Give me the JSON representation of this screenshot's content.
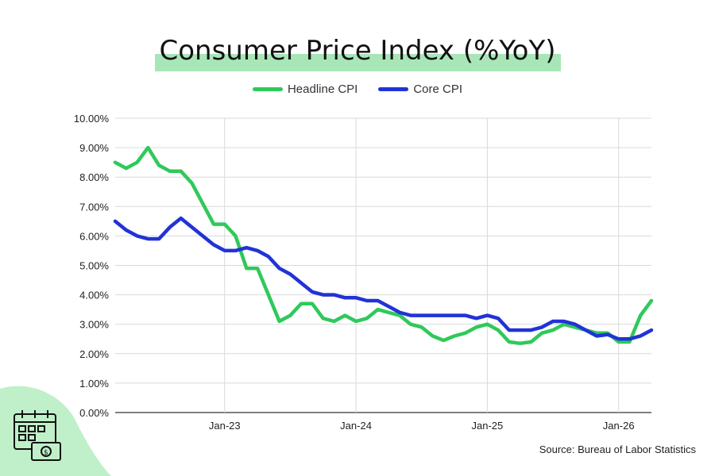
{
  "title": "Consumer Price Index (%YoY)",
  "source": "Source: Bureau of Labor Statistics",
  "colors": {
    "headline": "#2fc95a",
    "core": "#2133d6",
    "title_highlight": "#a8e6b8",
    "decor_green": "#bff0c9"
  },
  "icon": "calendar-money-icon",
  "chart_data": {
    "type": "line",
    "xlabel": "",
    "ylabel": "",
    "ylim": [
      0,
      10
    ],
    "y_ticks": [
      "0.00%",
      "1.00%",
      "2.00%",
      "3.00%",
      "4.00%",
      "5.00%",
      "6.00%",
      "7.00%",
      "8.00%",
      "9.00%",
      "10.00%"
    ],
    "x_ticks": [
      "Jan-23",
      "Jan-24",
      "Jan-25",
      "Jan-26"
    ],
    "x_tick_positions": [
      10,
      22,
      34,
      46
    ],
    "xlim": [
      0,
      49
    ],
    "grid": true,
    "legend": "top-center",
    "series": [
      {
        "name": "Headline CPI",
        "color": "#2fc95a",
        "x": [
          0,
          1,
          2,
          3,
          4,
          5,
          6,
          7,
          8,
          9,
          10,
          11,
          12,
          13,
          14,
          15,
          16,
          17,
          18,
          19,
          20,
          21,
          22,
          23,
          24,
          25,
          26,
          27,
          28,
          29,
          30,
          31,
          32,
          33,
          34,
          35,
          36,
          37,
          38,
          39,
          40,
          41,
          42,
          43,
          44,
          45,
          46,
          47,
          48,
          49
        ],
        "values": [
          8.5,
          8.3,
          8.5,
          9.0,
          8.4,
          8.2,
          8.2,
          7.8,
          7.1,
          6.4,
          6.4,
          6.0,
          4.9,
          4.9,
          4.0,
          3.1,
          3.3,
          3.7,
          3.7,
          3.2,
          3.1,
          3.3,
          3.1,
          3.2,
          3.5,
          3.4,
          3.3,
          3.0,
          2.9,
          2.6,
          2.45,
          2.6,
          2.7,
          2.9,
          3.0,
          2.8,
          2.4,
          2.35,
          2.4,
          2.7,
          2.8,
          3.0,
          2.9,
          2.8,
          2.7,
          2.7,
          2.4,
          2.4,
          3.3,
          3.8
        ]
      },
      {
        "name": "Core CPI",
        "color": "#2133d6",
        "x": [
          0,
          1,
          2,
          3,
          4,
          5,
          6,
          7,
          8,
          9,
          10,
          11,
          12,
          13,
          14,
          15,
          16,
          17,
          18,
          19,
          20,
          21,
          22,
          23,
          24,
          25,
          26,
          27,
          28,
          29,
          30,
          31,
          32,
          33,
          34,
          35,
          36,
          37,
          38,
          39,
          40,
          41,
          42,
          43,
          44,
          45,
          46,
          47,
          48,
          49
        ],
        "values": [
          6.5,
          6.2,
          6.0,
          5.9,
          5.9,
          6.3,
          6.6,
          6.3,
          6.0,
          5.7,
          5.5,
          5.5,
          5.6,
          5.5,
          5.3,
          4.9,
          4.7,
          4.4,
          4.1,
          4.0,
          4.0,
          3.9,
          3.9,
          3.8,
          3.8,
          3.6,
          3.4,
          3.3,
          3.3,
          3.3,
          3.3,
          3.3,
          3.3,
          3.2,
          3.3,
          3.2,
          2.8,
          2.8,
          2.8,
          2.9,
          3.1,
          3.1,
          3.0,
          2.8,
          2.6,
          2.65,
          2.5,
          2.5,
          2.6,
          2.8
        ]
      }
    ]
  }
}
